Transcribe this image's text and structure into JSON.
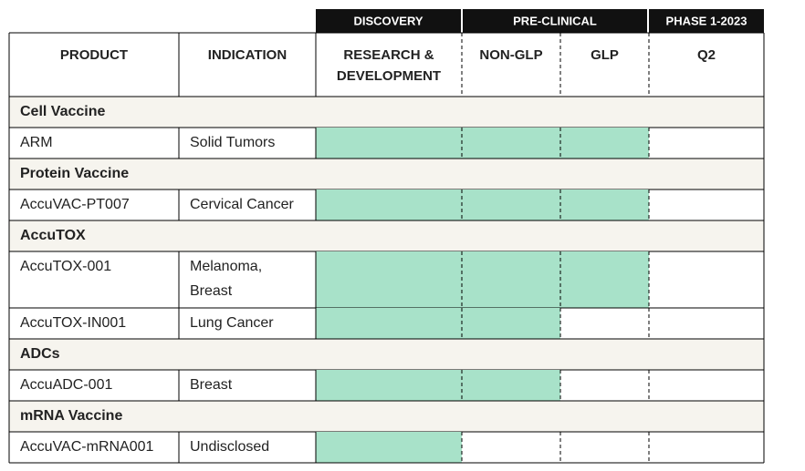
{
  "stage_groups": [
    "DISCOVERY",
    "PRE-CLINICAL",
    "PHASE 1-2023"
  ],
  "columns": [
    [
      "PRODUCT"
    ],
    [
      "INDICATION"
    ],
    [
      "RESEARCH &",
      "DEVELOPMENT"
    ],
    [
      "NON-GLP"
    ],
    [
      "GLP"
    ],
    [
      "Q2"
    ]
  ],
  "sections": [
    {
      "title": "Cell Vaccine",
      "products": [
        {
          "product": "ARM",
          "indication": [
            "Solid Tumors"
          ],
          "progress": 3
        }
      ]
    },
    {
      "title": "Protein Vaccine",
      "products": [
        {
          "product": "AccuVAC-PT007",
          "indication": [
            "Cervical Cancer"
          ],
          "progress": 3
        }
      ]
    },
    {
      "title": "AccuTOX",
      "products": [
        {
          "product": "AccuTOX-001",
          "indication": [
            "Melanoma,",
            "Breast"
          ],
          "progress": 3
        },
        {
          "product": "AccuTOX-IN001",
          "indication": [
            "Lung Cancer"
          ],
          "progress": 2
        }
      ]
    },
    {
      "title": "ADCs",
      "products": [
        {
          "product": "AccuADC-001",
          "indication": [
            "Breast"
          ],
          "progress": 2
        }
      ]
    },
    {
      "title": "mRNA Vaccine",
      "products": [
        {
          "product": "AccuVAC-mRNA001",
          "indication": [
            "Undisclosed"
          ],
          "progress": 1
        }
      ]
    }
  ]
}
